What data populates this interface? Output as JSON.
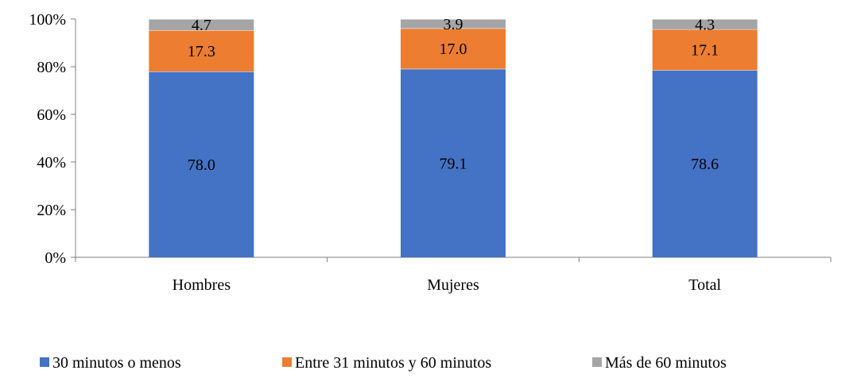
{
  "chart_data": {
    "type": "bar",
    "stacked": true,
    "percent_stacked": true,
    "categories": [
      "Hombres",
      "Mujeres",
      "Total"
    ],
    "series": [
      {
        "name": "30 minutos o menos",
        "values": [
          78.0,
          79.1,
          78.6
        ],
        "labels": [
          "78.0",
          "79.1",
          "78.6"
        ],
        "color": "#4472C4"
      },
      {
        "name": "Entre 31 minutos y 60 minutos",
        "values": [
          17.3,
          17.0,
          17.1
        ],
        "labels": [
          "17.3",
          "17.0",
          "17.1"
        ],
        "color": "#ED7D31"
      },
      {
        "name": "Más de 60 minutos",
        "values": [
          4.7,
          3.9,
          4.3
        ],
        "labels": [
          "4.7",
          "3.9",
          "4.3"
        ],
        "color": "#A5A5A5"
      }
    ],
    "title": "",
    "xlabel": "",
    "ylabel": "",
    "ylim": [
      0,
      100
    ],
    "yticks": [
      "0%",
      "20%",
      "40%",
      "60%",
      "80%",
      "100%"
    ],
    "grid": false,
    "legend_position": "bottom"
  }
}
